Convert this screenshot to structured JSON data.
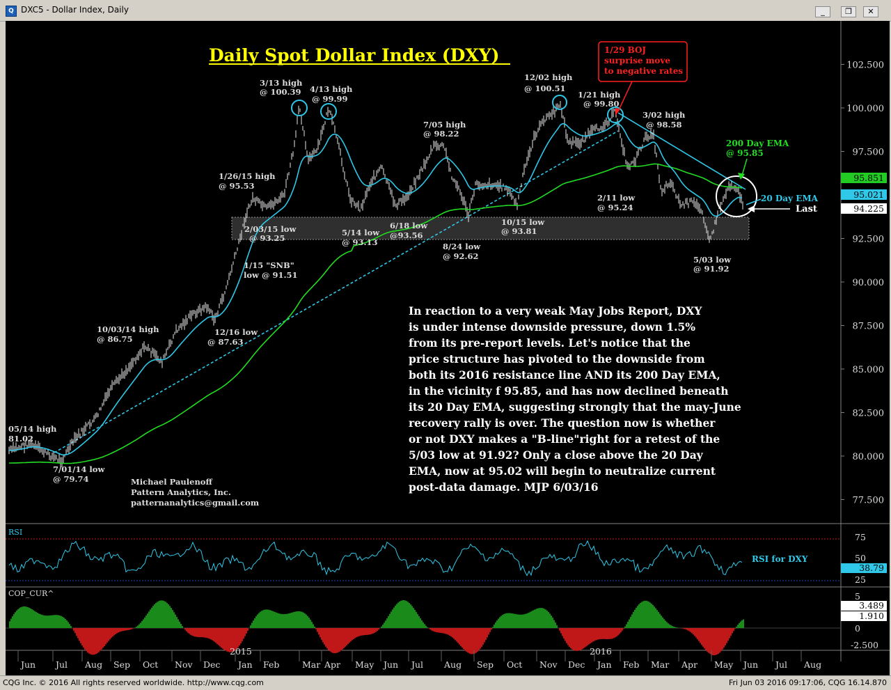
{
  "window": {
    "title": "DXC5 - Dollar Index, Daily",
    "minimize": "_",
    "restore": "❐",
    "close": "✕",
    "app_icon": "chart-app-icon"
  },
  "chart": {
    "title": "Daily Spot Dollar Index (DXY)",
    "colors": {
      "price": "#e8e8e8",
      "ema20": "#2fc8e8",
      "ema200": "#22dd22",
      "trend": "#2fc8e8",
      "rsi": "#2fc8e8",
      "boj_box": "#ff2020",
      "title": "#ffff00"
    },
    "price_axis": {
      "ticks": [
        "102.500",
        "100.000",
        "97.500",
        "95.000",
        "92.500",
        "90.000",
        "87.500",
        "85.000",
        "82.500",
        "80.000",
        "77.500"
      ]
    },
    "price_labels": {
      "ema200": "95.851",
      "ema20": "95.021",
      "last": "94.225"
    },
    "annotations": {
      "boj": [
        "1/29 BOJ",
        "surprise move",
        "to negative rates"
      ],
      "h_0313": [
        "3/13 high",
        "@ 100.39"
      ],
      "h_0413": [
        "4/13 high",
        "@ 99.99"
      ],
      "h_1202": [
        "12/02 high",
        "@ 100.51"
      ],
      "h_0121": [
        "1/21 high",
        "@ 99.80"
      ],
      "h_0302": [
        "3/02 high",
        "@ 98.58"
      ],
      "h_0705": [
        "7/05 high",
        "@ 98.22"
      ],
      "h_0126": [
        "1/26/15 high",
        "@ 95.53"
      ],
      "l_0203": [
        "2/03/15 low",
        "@ 93.25"
      ],
      "l_0514": [
        "5/14 low",
        "@ 93.13"
      ],
      "l_0618": [
        "6/18 low",
        "@93.56"
      ],
      "l_1015": [
        "10/15 low",
        "@ 93.81"
      ],
      "l_0824": [
        "8/24 low",
        "@ 92.62"
      ],
      "l_0211": [
        "2/11 low",
        "@ 95.24"
      ],
      "l_0503": [
        "5/03 low",
        "@ 91.92"
      ],
      "l_0115": [
        "1/15 \"SNB\"",
        "low @ 91.51"
      ],
      "l_1216": [
        "12/16 low",
        "@ 87.63"
      ],
      "h_1003": [
        "10/03/14 high",
        "@ 86.75"
      ],
      "h_0514_14": [
        "05/14 high",
        "81.02"
      ],
      "l_0701": [
        "7/01/14 low",
        "@ 79.74"
      ],
      "ema200": [
        "200 Day EMA",
        "@ 95.85"
      ],
      "ema20": "20 Day EMA",
      "last": "Last",
      "author": [
        "Michael Paulenoff",
        "Pattern Analytics, Inc.",
        "patternanalytics@gmail.com"
      ]
    },
    "commentary": [
      "In reaction to a very weak May Jobs Report, DXY",
      "is under intense downside pressure, down 1.5%",
      "from its pre-report levels. Let's notice that the",
      "price structure has pivoted to the downside from",
      "both its 2016 resistance line AND its 200 Day EMA,",
      "in the vicinity f 95.85, and has now declined beneath",
      "its 20 Day EMA, suggesting strongly that the may-June",
      "recovery rally is over. The question now is whether",
      "or not DXY makes a \"B-line\"right for a retest of the",
      "5/03 low at 91.92?  Only a close above the 20 Day",
      "EMA, now at 95.02 will begin to neutralize current",
      "post-data damage.  MJP 6/03/16"
    ]
  },
  "rsi_panel": {
    "label": "RSI",
    "ticks": [
      "75",
      "50",
      "25"
    ],
    "value": "38.79",
    "note": "RSI for DXY"
  },
  "cop_panel": {
    "label": "COP_CUR^",
    "ticks": [
      "5",
      "0",
      "-2.500"
    ],
    "value1": "3.489",
    "value2": "1.910"
  },
  "time_axis": {
    "months": [
      "Jun",
      "Jul",
      "Aug",
      "Sep",
      "Oct",
      "Nov",
      "Dec",
      "Jan",
      "Feb",
      "Mar",
      "Apr",
      "May",
      "Jun",
      "Jul",
      "Aug",
      "Sep",
      "Oct",
      "Nov",
      "Dec",
      "Jan",
      "Feb",
      "Mar",
      "Apr",
      "May",
      "Jun",
      "Jul",
      "Aug"
    ],
    "years": [
      "2015",
      "2016"
    ]
  },
  "status": {
    "left": "CQG Inc. © 2016 All rights reserved worldwide. http://www.cqg.com",
    "right": "Fri Jun 03 2016 09:17:06, CQG 16.14.870"
  }
}
